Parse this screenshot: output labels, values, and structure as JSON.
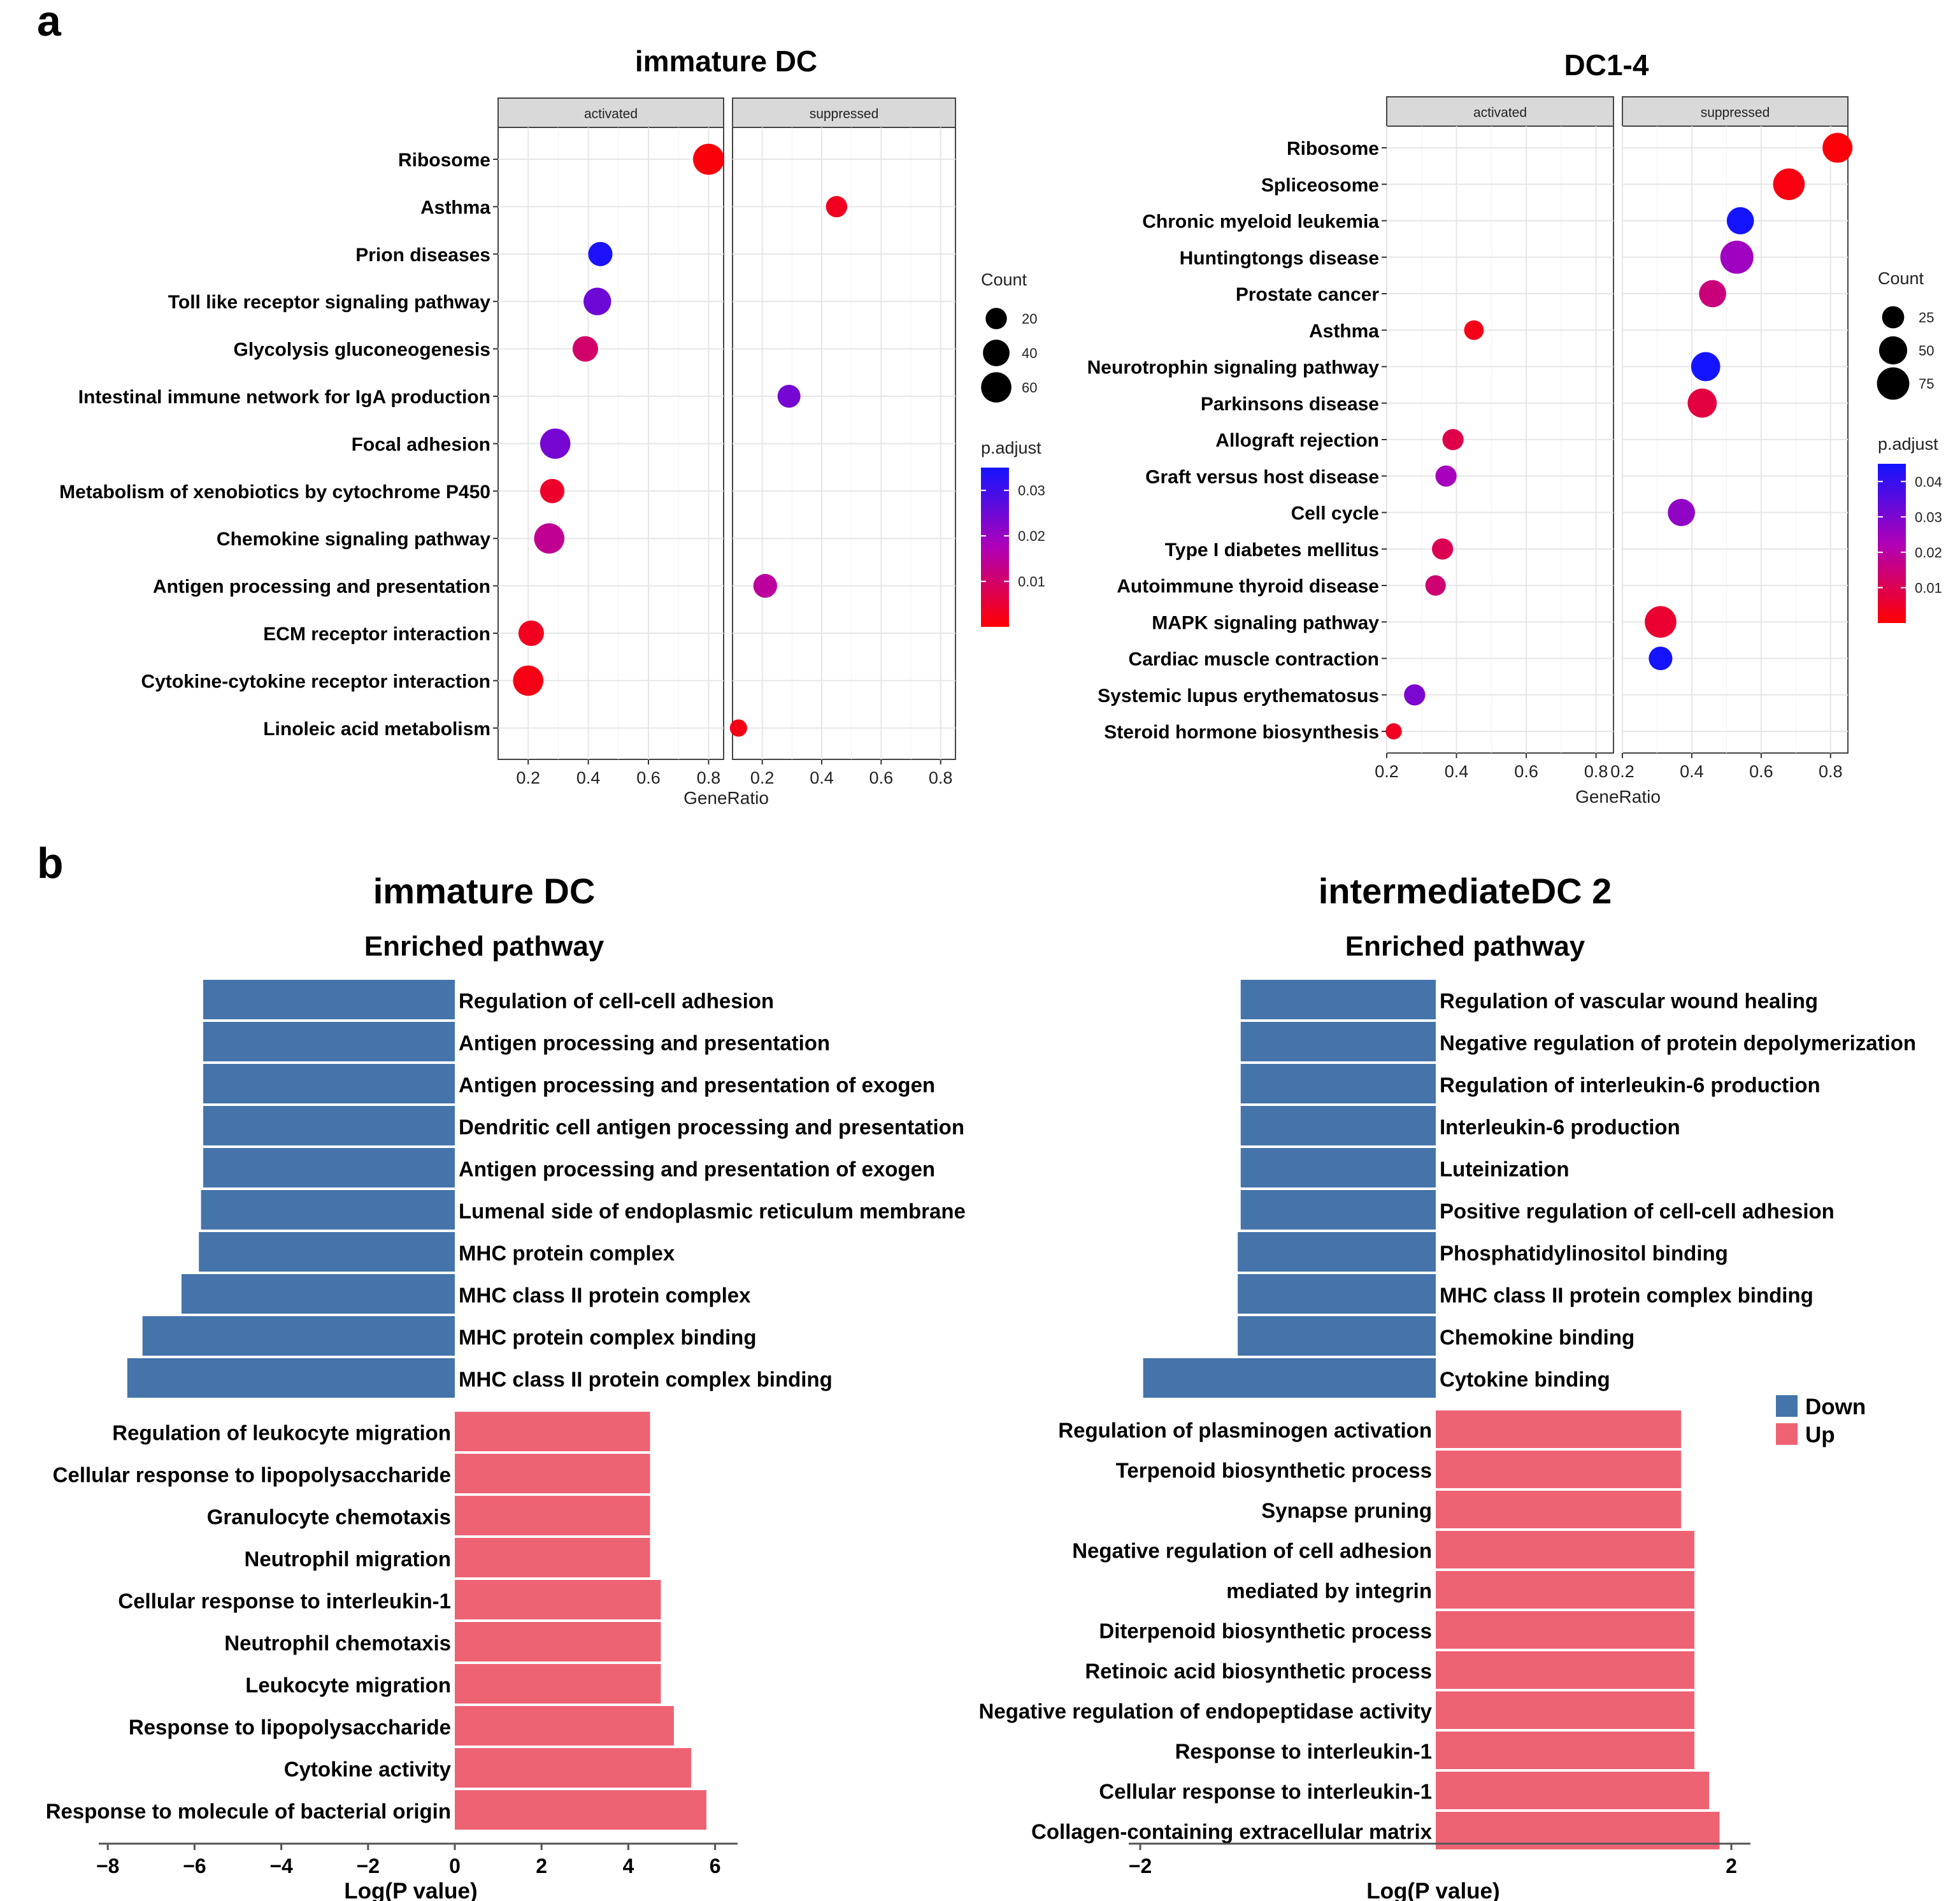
{
  "panels": {
    "a": "a",
    "b": "b"
  },
  "legend_text": {
    "count_title": "Count",
    "padj_title": "p.adjust",
    "down": "Down",
    "up": "Up",
    "gene_ratio": "GeneRatio",
    "log_p": "Log(P value)"
  },
  "colors": {
    "low_padj": "#ff0000",
    "mid_padj": "#b000b8",
    "high_padj": "#1414ff",
    "down_bar": "#4474aa",
    "up_bar": "#ee6374",
    "strip_bg": "#d9d9d9"
  },
  "chart_data": [
    {
      "type": "scatter",
      "title": "immature DC",
      "facets": [
        "activated",
        "suppressed"
      ],
      "xlabel": "GeneRatio",
      "xlim": [
        0.1,
        0.85
      ],
      "xticks": [
        0.2,
        0.4,
        0.6,
        0.8
      ],
      "xtick_labels": [
        "0.2",
        "0.4",
        "0.6",
        "0.8"
      ],
      "size_legend": {
        "label": "Count",
        "values": [
          20,
          40,
          60
        ]
      },
      "size_range": [
        10,
        70
      ],
      "color_legend": {
        "label": "p.adjust",
        "ticks": [
          0.01,
          0.02,
          0.03
        ],
        "tick_labels": [
          "0.01",
          "0.02",
          "0.03"
        ],
        "range": [
          0.0,
          0.035
        ]
      },
      "categories": [
        "Ribosome",
        "Asthma",
        "Prion diseases",
        "Toll like receptor signaling pathway",
        "Glycolysis gluconeogenesis",
        "Intestinal immune network for IgA production",
        "Focal adhesion",
        "Metabolism of xenobiotics by cytochrome P450",
        "Chemokine signaling pathway",
        "Antigen processing and presentation",
        "ECM receptor interaction",
        "Cytokine-cytokine receptor interaction",
        "Linoleic acid metabolism"
      ],
      "points": [
        {
          "category": "Ribosome",
          "facet": "activated",
          "gene_ratio": 0.8,
          "count": 65,
          "p_adjust": 0.001
        },
        {
          "category": "Asthma",
          "facet": "suppressed",
          "gene_ratio": 0.45,
          "count": 20,
          "p_adjust": 0.003
        },
        {
          "category": "Prion diseases",
          "facet": "activated",
          "gene_ratio": 0.44,
          "count": 30,
          "p_adjust": 0.034
        },
        {
          "category": "Toll like receptor signaling pathway",
          "facet": "activated",
          "gene_ratio": 0.43,
          "count": 45,
          "p_adjust": 0.025
        },
        {
          "category": "Glycolysis gluconeogenesis",
          "facet": "activated",
          "gene_ratio": 0.39,
          "count": 35,
          "p_adjust": 0.01
        },
        {
          "category": "Intestinal immune network for IgA production",
          "facet": "suppressed",
          "gene_ratio": 0.29,
          "count": 25,
          "p_adjust": 0.024
        },
        {
          "category": "Focal adhesion",
          "facet": "activated",
          "gene_ratio": 0.29,
          "count": 60,
          "p_adjust": 0.024
        },
        {
          "category": "Metabolism of xenobiotics by cytochrome P450",
          "facet": "activated",
          "gene_ratio": 0.28,
          "count": 30,
          "p_adjust": 0.004
        },
        {
          "category": "Chemokine signaling pathway",
          "facet": "activated",
          "gene_ratio": 0.27,
          "count": 60,
          "p_adjust": 0.014
        },
        {
          "category": "Antigen processing and presentation",
          "facet": "suppressed",
          "gene_ratio": 0.21,
          "count": 28,
          "p_adjust": 0.015
        },
        {
          "category": "ECM receptor interaction",
          "facet": "activated",
          "gene_ratio": 0.21,
          "count": 35,
          "p_adjust": 0.003
        },
        {
          "category": "Cytokine-cytokine receptor interaction",
          "facet": "activated",
          "gene_ratio": 0.2,
          "count": 60,
          "p_adjust": 0.002
        },
        {
          "category": "Linoleic acid metabolism",
          "facet": "suppressed",
          "gene_ratio": 0.12,
          "count": 12,
          "p_adjust": 0.002
        }
      ]
    },
    {
      "type": "scatter",
      "title": "DC1-4",
      "facets": [
        "activated",
        "suppressed"
      ],
      "xlabel": "GeneRatio",
      "xlim": [
        0.2,
        0.85
      ],
      "xticks": [
        0.2,
        0.4,
        0.6,
        0.8
      ],
      "xtick_labels": [
        "0.2",
        "0.4",
        "0.6",
        "0.8"
      ],
      "size_legend": {
        "label": "Count",
        "values": [
          25,
          50,
          75
        ]
      },
      "size_range": [
        10,
        80
      ],
      "color_legend": {
        "label": "p.adjust",
        "ticks": [
          0.01,
          0.02,
          0.03,
          0.04
        ],
        "tick_labels": [
          "0.01",
          "0.02",
          "0.03",
          "0.04"
        ],
        "range": [
          0.0,
          0.045
        ]
      },
      "categories": [
        "Ribosome",
        "Spliceosome",
        "Chronic myeloid leukemia",
        "Huntingtongs disease",
        "Prostate cancer",
        "Asthma",
        "Neurotrophin signaling pathway",
        "Parkinsons disease",
        "Allograft rejection",
        "Graft versus host disease",
        "Cell cycle",
        "Type I diabetes mellitus",
        "Autoimmune thyroid disease",
        "MAPK signaling pathway",
        "Cardiac muscle contraction",
        "Systemic lupus erythematosus",
        "Steroid hormone biosynthesis"
      ],
      "points": [
        {
          "category": "Ribosome",
          "facet": "suppressed",
          "gene_ratio": 0.82,
          "count": 60,
          "p_adjust": 0.001
        },
        {
          "category": "Spliceosome",
          "facet": "suppressed",
          "gene_ratio": 0.68,
          "count": 70,
          "p_adjust": 0.002
        },
        {
          "category": "Chronic myeloid leukemia",
          "facet": "suppressed",
          "gene_ratio": 0.54,
          "count": 45,
          "p_adjust": 0.046
        },
        {
          "category": "Huntingtongs disease",
          "facet": "suppressed",
          "gene_ratio": 0.53,
          "count": 80,
          "p_adjust": 0.025
        },
        {
          "category": "Prostate cancer",
          "facet": "suppressed",
          "gene_ratio": 0.46,
          "count": 45,
          "p_adjust": 0.015
        },
        {
          "category": "Asthma",
          "facet": "activated",
          "gene_ratio": 0.45,
          "count": 18,
          "p_adjust": 0.003
        },
        {
          "category": "Neurotrophin signaling pathway",
          "facet": "suppressed",
          "gene_ratio": 0.44,
          "count": 55,
          "p_adjust": 0.046
        },
        {
          "category": "Parkinsons disease",
          "facet": "suppressed",
          "gene_ratio": 0.43,
          "count": 55,
          "p_adjust": 0.008
        },
        {
          "category": "Allograft rejection",
          "facet": "activated",
          "gene_ratio": 0.39,
          "count": 22,
          "p_adjust": 0.009
        },
        {
          "category": "Graft versus host disease",
          "facet": "activated",
          "gene_ratio": 0.37,
          "count": 22,
          "p_adjust": 0.024
        },
        {
          "category": "Cell cycle",
          "facet": "suppressed",
          "gene_ratio": 0.37,
          "count": 45,
          "p_adjust": 0.027
        },
        {
          "category": "Type I diabetes mellitus",
          "facet": "activated",
          "gene_ratio": 0.36,
          "count": 22,
          "p_adjust": 0.01
        },
        {
          "category": "Autoimmune thyroid disease",
          "facet": "activated",
          "gene_ratio": 0.34,
          "count": 20,
          "p_adjust": 0.014
        },
        {
          "category": "MAPK signaling pathway",
          "facet": "suppressed",
          "gene_ratio": 0.31,
          "count": 70,
          "p_adjust": 0.006
        },
        {
          "category": "Cardiac muscle contraction",
          "facet": "suppressed",
          "gene_ratio": 0.31,
          "count": 30,
          "p_adjust": 0.046
        },
        {
          "category": "Systemic lupus erythematosus",
          "facet": "activated",
          "gene_ratio": 0.28,
          "count": 22,
          "p_adjust": 0.03
        },
        {
          "category": "Steroid hormone biosynthesis",
          "facet": "activated",
          "gene_ratio": 0.22,
          "count": 12,
          "p_adjust": 0.004
        }
      ]
    },
    {
      "type": "bar",
      "orientation": "horizontal",
      "title": "immature DC",
      "subtitle": "Enriched pathway",
      "xlabel": "Log(P value)",
      "xlim": [
        -8,
        6
      ],
      "xticks": [
        -8,
        -6,
        -4,
        -2,
        0,
        2,
        4,
        6
      ],
      "xtick_labels": [
        "−8",
        "−6",
        "−4",
        "−2",
        "0",
        "2",
        "4",
        "6"
      ],
      "series": [
        {
          "name": "Down",
          "categories": [
            "Regulation of cell-cell adhesion",
            "Antigen processing and presentation",
            "Antigen processing and presentation of exogen",
            "Dendritic cell antigen processing and presentation",
            "Antigen processing and presentation of exogen",
            "Lumenal side of endoplasmic reticulum membrane",
            "MHC protein complex",
            "MHC class II protein complex",
            "MHC protein complex binding",
            "MHC class II protein complex binding"
          ],
          "values": [
            -5.8,
            -5.8,
            -5.8,
            -5.8,
            -5.8,
            -5.85,
            -5.9,
            -6.3,
            -7.2,
            -7.55
          ]
        },
        {
          "name": "Up",
          "categories": [
            "Regulation of leukocyte migration",
            "Cellular response to lipopolysaccharide",
            "Granulocyte chemotaxis",
            "Neutrophil migration",
            "Cellular response to interleukin-1",
            "Neutrophil chemotaxis",
            "Leukocyte migration",
            "Response to lipopolysaccharide",
            "Cytokine activity",
            "Response to molecule of bacterial origin"
          ],
          "values": [
            4.5,
            4.5,
            4.5,
            4.5,
            4.75,
            4.75,
            4.75,
            5.05,
            5.45,
            5.8
          ]
        }
      ]
    },
    {
      "type": "bar",
      "orientation": "horizontal",
      "title": "intermediateDC 2",
      "subtitle": "Enriched pathway",
      "xlabel": "Log(P value)",
      "xlim": [
        -2.2,
        2.1
      ],
      "xticks": [
        -2,
        2
      ],
      "xtick_labels": [
        "−2",
        "2"
      ],
      "series": [
        {
          "name": "Down",
          "categories": [
            "Regulation of vascular wound healing",
            "Negative regulation of protein depolymerization",
            "Regulation of interleukin-6 production",
            "Interleukin-6 production",
            "Luteinization",
            "Positive regulation of cell-cell adhesion",
            "Phosphatidylinositol binding",
            "MHC class II protein complex binding",
            "Chemokine binding",
            "Cytokine binding"
          ],
          "values": [
            -1.32,
            -1.32,
            -1.32,
            -1.32,
            -1.32,
            -1.32,
            -1.34,
            -1.34,
            -1.34,
            -1.98
          ]
        },
        {
          "name": "Up",
          "categories": [
            "Regulation of plasminogen activation",
            "Terpenoid biosynthetic process",
            "Synapse pruning",
            "Negative regulation of cell adhesion",
            "mediated by integrin",
            "Diterpenoid biosynthetic process",
            "Retinoic acid biosynthetic process",
            "Negative regulation of endopeptidase activity",
            "Response to interleukin-1",
            "Cellular response to interleukin-1",
            "Collagen-containing extracellular matrix"
          ],
          "values": [
            1.66,
            1.66,
            1.66,
            1.75,
            1.75,
            1.75,
            1.75,
            1.75,
            1.75,
            1.85,
            1.92
          ]
        }
      ]
    }
  ]
}
